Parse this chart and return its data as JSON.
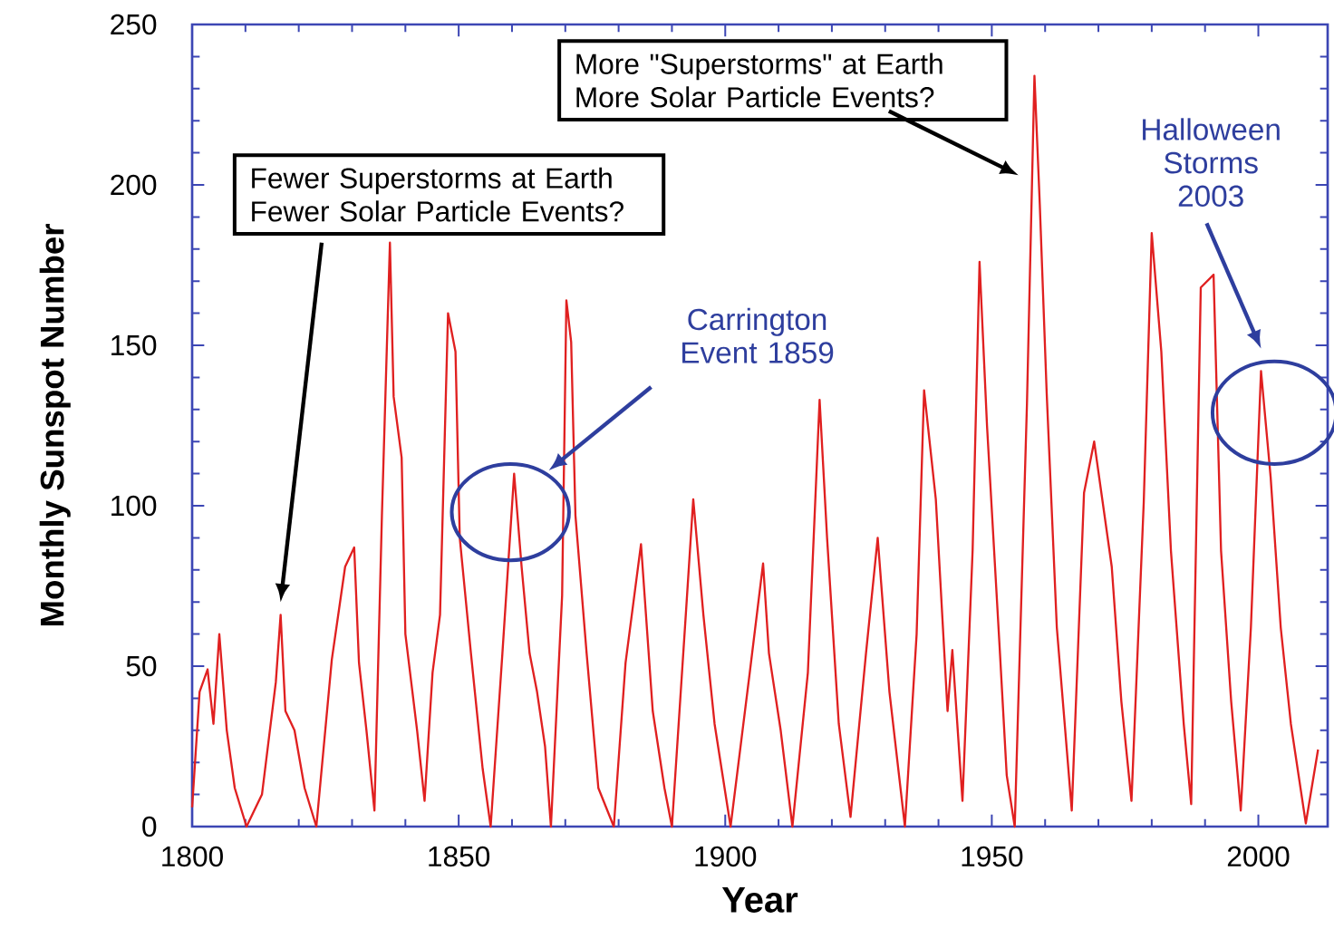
{
  "chart_data": {
    "type": "line",
    "xlabel": "Year",
    "ylabel": "Monthly Sunspot Number",
    "xlim": [
      1800,
      2013
    ],
    "ylim": [
      0,
      250
    ],
    "xticks": [
      1800,
      1850,
      1900,
      1950,
      2000
    ],
    "yticks": [
      0,
      50,
      100,
      150,
      200,
      250
    ],
    "marker": "none",
    "line_style": "solid",
    "series": [
      {
        "color": "#e02020",
        "x": [
          1800,
          1801.4,
          1802.9,
          1804,
          1805.1,
          1806.5,
          1808,
          1810.2,
          1813.1,
          1815.7,
          1816.6,
          1817.5,
          1819.2,
          1821.1,
          1823.3,
          1826.2,
          1828.7,
          1830.4,
          1831.3,
          1832.7,
          1834.2,
          1835.6,
          1837.1,
          1837.8,
          1839.3,
          1840,
          1842.2,
          1843.6,
          1845.1,
          1846.5,
          1848,
          1849.4,
          1850.2,
          1852.3,
          1854.5,
          1856,
          1858.2,
          1860.4,
          1861.8,
          1863.3,
          1864.7,
          1866.2,
          1867.3,
          1869.4,
          1870.2,
          1871.1,
          1871.9,
          1874,
          1876.2,
          1879.1,
          1881.3,
          1884.2,
          1886.4,
          1888.6,
          1890,
          1892.6,
          1894,
          1895.9,
          1898,
          1901,
          1904.6,
          1907.1,
          1908.2,
          1910.4,
          1912.6,
          1915.5,
          1917.7,
          1919.1,
          1921.3,
          1923.5,
          1926.4,
          1928.6,
          1930.8,
          1933.7,
          1935.9,
          1937.3,
          1939.5,
          1941.7,
          1942.6,
          1944.5,
          1946.4,
          1947.7,
          1949.1,
          1951.5,
          1952.8,
          1954.3,
          1956.6,
          1958,
          1959,
          1960.3,
          1962.2,
          1965,
          1967.3,
          1969.2,
          1972.5,
          1974.3,
          1976.2,
          1978.5,
          1980,
          1981.8,
          1983.6,
          1986,
          1987.4,
          1989.2,
          1991.6,
          1993,
          1994.9,
          1996.7,
          1998.6,
          2000.5,
          2002.3,
          2004.2,
          2006.1,
          2008.9,
          2011.2
        ],
        "values": [
          6,
          42,
          49,
          32,
          60,
          30,
          12,
          0,
          10,
          45,
          66,
          36,
          30,
          12,
          0,
          52,
          81,
          87,
          51,
          30,
          5,
          97,
          182,
          134,
          115,
          60,
          30,
          8,
          48,
          66,
          160,
          148,
          90,
          54,
          18,
          0,
          54,
          110,
          81,
          54,
          42,
          25,
          0,
          72,
          164,
          151,
          97,
          54,
          12,
          0,
          51,
          88,
          36,
          12,
          0,
          66,
          102,
          66,
          32,
          0,
          48,
          82,
          54,
          30,
          0,
          48,
          133,
          90,
          32,
          3,
          54,
          90,
          42,
          0,
          60,
          136,
          102,
          36,
          55,
          8,
          86,
          176,
          125,
          55,
          16,
          0,
          132,
          234,
          194,
          135,
          62,
          5,
          104,
          120,
          81,
          39,
          8,
          101,
          185,
          148,
          86,
          32,
          7,
          168,
          172,
          86,
          39,
          5,
          62,
          142,
          109,
          62,
          32,
          1,
          24
        ]
      }
    ],
    "annotations": [
      "Fewer Superstorms at Earth Fewer Solar Particle Events?",
      "More \"Superstorms\" at Earth More Solar Particle Events?",
      "Carrington Event 1859",
      "Halloween Storms 2003"
    ]
  }
}
